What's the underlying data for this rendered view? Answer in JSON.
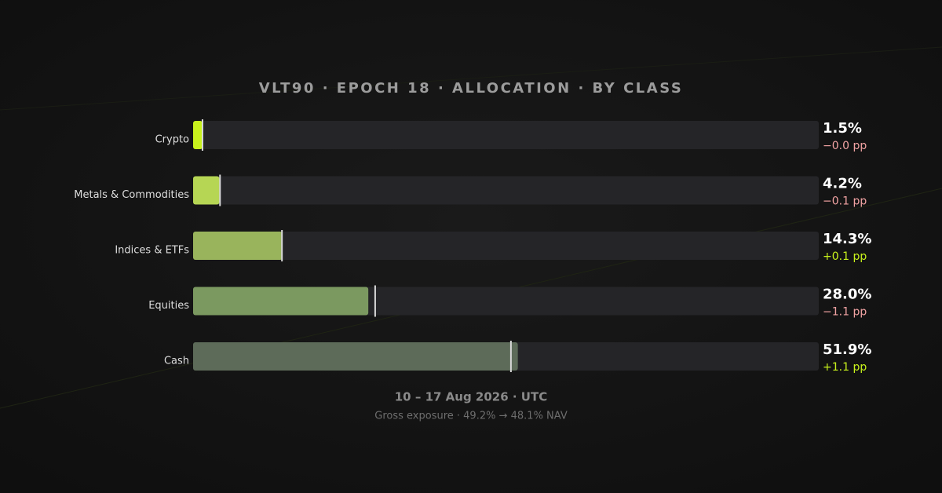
{
  "chart_data": {
    "type": "bar",
    "orientation": "horizontal",
    "title": "VLT90 · EPOCH 18 · ALLOCATION · BY CLASS",
    "categories": [
      "Crypto",
      "Metals & Commodities",
      "Indices & ETFs",
      "Equities",
      "Cash"
    ],
    "values": [
      1.5,
      4.2,
      14.3,
      28.0,
      51.9
    ],
    "value_labels": [
      "1.5%",
      "4.2%",
      "14.3%",
      "28.0%",
      "51.9%"
    ],
    "changes": [
      -0.0,
      -0.1,
      0.1,
      -1.1,
      1.1
    ],
    "change_labels": [
      "−0.0 pp",
      "−0.1 pp",
      "+0.1 pp",
      "−1.1 pp",
      "+1.1 pp"
    ],
    "colors": [
      "#c8f21c",
      "#b6d654",
      "#99b45c",
      "#7b9960",
      "#5d6b59"
    ],
    "xlim": [
      0,
      100
    ],
    "subtitle": "10 – 17 Aug 2026 · UTC",
    "note": "Gross exposure · 49.2% → 48.1% NAV"
  }
}
